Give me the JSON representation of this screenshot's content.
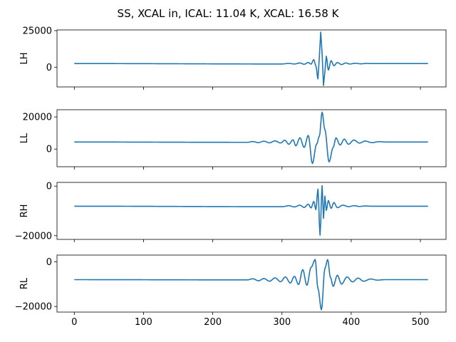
{
  "figure": {
    "title": "SS, XCAL in, ICAL: 11.04 K, XCAL: 16.58 K",
    "line_color": "#1f77b4"
  },
  "chart_data": [
    {
      "type": "line",
      "ylabel": "LH",
      "xlim": [
        -25,
        537
      ],
      "ylim": [
        -13500,
        25500
      ],
      "yticks": [
        0,
        25000
      ],
      "ytick_labels": [
        "0",
        "25000"
      ],
      "xticks": [
        0,
        100,
        200,
        300,
        400,
        500
      ],
      "xtick_labels": [],
      "baseline": 2500,
      "x_range": [
        0,
        511
      ],
      "features": [
        [
          300,
          2200
        ],
        [
          310,
          2600
        ],
        [
          318,
          2200
        ],
        [
          326,
          2900
        ],
        [
          332,
          2000
        ],
        [
          338,
          3200
        ],
        [
          342,
          2100
        ],
        [
          346,
          5200
        ],
        [
          349,
          900
        ],
        [
          352,
          -8000
        ],
        [
          354,
          7000
        ],
        [
          356,
          24000
        ],
        [
          358,
          9000
        ],
        [
          360,
          -12500
        ],
        [
          362,
          -3000
        ],
        [
          364,
          7500
        ],
        [
          367,
          -2000
        ],
        [
          371,
          4500
        ],
        [
          375,
          1000
        ],
        [
          380,
          3200
        ],
        [
          386,
          1800
        ],
        [
          392,
          2900
        ],
        [
          398,
          2200
        ],
        [
          406,
          2700
        ],
        [
          414,
          2300
        ],
        [
          422,
          2600
        ],
        [
          430,
          2500
        ]
      ]
    },
    {
      "type": "line",
      "ylabel": "LL",
      "xlim": [
        -25,
        537
      ],
      "ylim": [
        -11000,
        24500
      ],
      "yticks": [
        0,
        20000
      ],
      "ytick_labels": [
        "0",
        "20000"
      ],
      "xticks": [
        0,
        100,
        200,
        300,
        400,
        500
      ],
      "xtick_labels": [],
      "baseline": 4400,
      "x_range": [
        0,
        511
      ],
      "features": [
        [
          250,
          4200
        ],
        [
          258,
          4700
        ],
        [
          266,
          4000
        ],
        [
          274,
          4900
        ],
        [
          282,
          3900
        ],
        [
          290,
          5100
        ],
        [
          298,
          3800
        ],
        [
          304,
          5500
        ],
        [
          310,
          3000
        ],
        [
          316,
          5800
        ],
        [
          320,
          2000
        ],
        [
          326,
          7000
        ],
        [
          332,
          1000
        ],
        [
          338,
          8500
        ],
        [
          344,
          -9000
        ],
        [
          350,
          3000
        ],
        [
          354,
          8000
        ],
        [
          358,
          23000
        ],
        [
          362,
          12000
        ],
        [
          368,
          -8000
        ],
        [
          374,
          1000
        ],
        [
          378,
          7000
        ],
        [
          384,
          2500
        ],
        [
          390,
          6200
        ],
        [
          396,
          3000
        ],
        [
          404,
          5600
        ],
        [
          412,
          3700
        ],
        [
          420,
          5000
        ],
        [
          430,
          4000
        ],
        [
          440,
          4600
        ],
        [
          450,
          4400
        ]
      ]
    },
    {
      "type": "line",
      "ylabel": "RH",
      "xlim": [
        -25,
        537
      ],
      "ylim": [
        -21500,
        1500
      ],
      "yticks": [
        -20000,
        0
      ],
      "ytick_labels": [
        "−20000",
        "0"
      ],
      "xticks": [
        0,
        100,
        200,
        300,
        400,
        500
      ],
      "xtick_labels": [],
      "baseline": -8100,
      "x_range": [
        0,
        511
      ],
      "features": [
        [
          300,
          -8300
        ],
        [
          310,
          -7900
        ],
        [
          318,
          -8400
        ],
        [
          326,
          -7700
        ],
        [
          332,
          -8600
        ],
        [
          338,
          -7300
        ],
        [
          342,
          -8800
        ],
        [
          346,
          -6200
        ],
        [
          349,
          -9500
        ],
        [
          352,
          -1200
        ],
        [
          355,
          -19800
        ],
        [
          358,
          200
        ],
        [
          360,
          -13000
        ],
        [
          362,
          -4000
        ],
        [
          364,
          -9800
        ],
        [
          367,
          -5800
        ],
        [
          371,
          -9000
        ],
        [
          375,
          -6600
        ],
        [
          380,
          -8700
        ],
        [
          388,
          -7700
        ],
        [
          396,
          -8300
        ],
        [
          404,
          -7900
        ],
        [
          412,
          -8200
        ],
        [
          420,
          -8000
        ],
        [
          428,
          -8100
        ]
      ]
    },
    {
      "type": "line",
      "ylabel": "RL",
      "xlim": [
        -25,
        537
      ],
      "ylim": [
        -22500,
        3000
      ],
      "yticks": [
        -20000,
        0
      ],
      "ytick_labels": [
        "−20000",
        "0"
      ],
      "xticks": [
        0,
        100,
        200,
        300,
        400,
        500
      ],
      "xtick_labels": [
        "0",
        "100",
        "200",
        "300",
        "400",
        "500"
      ],
      "baseline": -8000,
      "x_range": [
        0,
        511
      ],
      "features": [
        [
          250,
          -8100
        ],
        [
          258,
          -7600
        ],
        [
          266,
          -8500
        ],
        [
          274,
          -7500
        ],
        [
          282,
          -8700
        ],
        [
          290,
          -7200
        ],
        [
          298,
          -8900
        ],
        [
          305,
          -6800
        ],
        [
          312,
          -9500
        ],
        [
          318,
          -6500
        ],
        [
          324,
          -10200
        ],
        [
          330,
          -3500
        ],
        [
          336,
          -10500
        ],
        [
          342,
          -2500
        ],
        [
          348,
          1000
        ],
        [
          352,
          -12000
        ],
        [
          357,
          -21500
        ],
        [
          362,
          -3000
        ],
        [
          366,
          1000
        ],
        [
          370,
          -7000
        ],
        [
          374,
          -11000
        ],
        [
          380,
          -6000
        ],
        [
          386,
          -10000
        ],
        [
          394,
          -6800
        ],
        [
          402,
          -9000
        ],
        [
          410,
          -7300
        ],
        [
          418,
          -8700
        ],
        [
          428,
          -7700
        ],
        [
          438,
          -8200
        ],
        [
          448,
          -8000
        ]
      ]
    }
  ]
}
